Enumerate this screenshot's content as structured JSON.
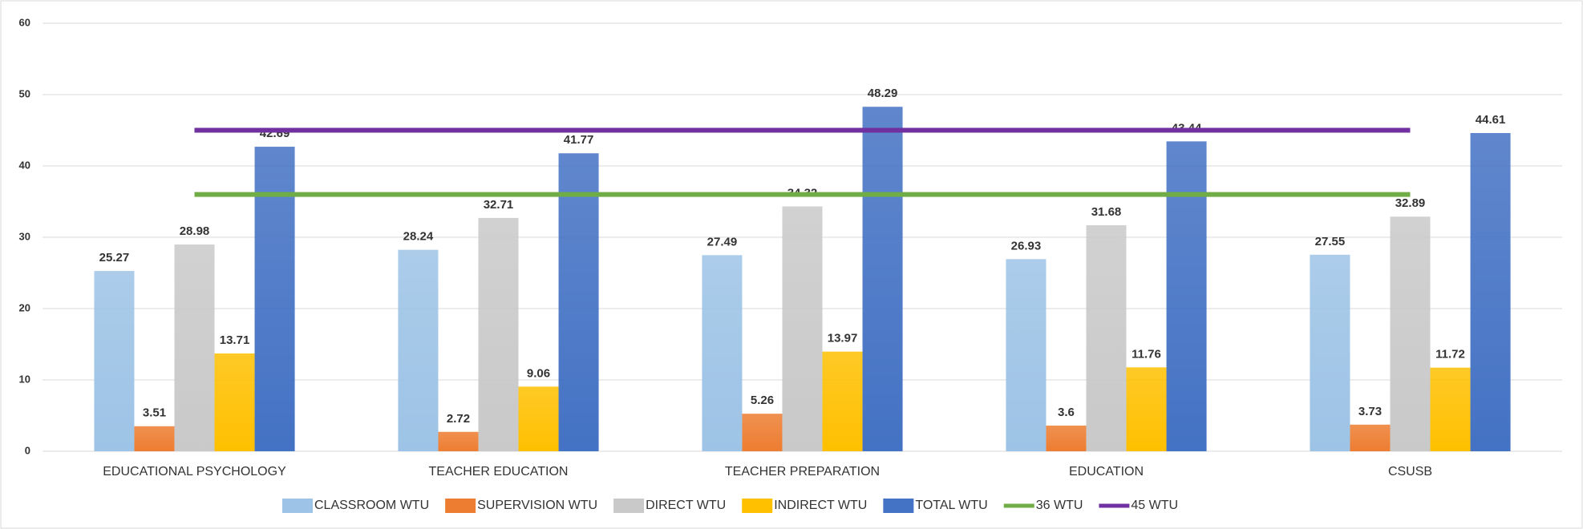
{
  "chart_data": {
    "type": "bar",
    "categories": [
      "EDUCATIONAL PSYCHOLOGY",
      "TEACHER EDUCATION",
      "TEACHER PREPARATION",
      "EDUCATION",
      "CSUSB"
    ],
    "ylim": [
      0,
      60
    ],
    "yticks": [
      0,
      10,
      20,
      30,
      40,
      50,
      60
    ],
    "grid": true,
    "legend": "bottom",
    "series": [
      {
        "name": "CLASSROOM WTU",
        "color": "#9dc3e6",
        "values": [
          25.27,
          28.24,
          27.49,
          26.93,
          27.55
        ]
      },
      {
        "name": "SUPERVISION WTU",
        "color": "#ed7d31",
        "values": [
          3.51,
          2.72,
          5.26,
          3.6,
          3.73
        ]
      },
      {
        "name": "DIRECT WTU",
        "color": "#c9c9c9",
        "values": [
          28.98,
          32.71,
          34.32,
          31.68,
          32.89
        ]
      },
      {
        "name": "INDIRECT WTU",
        "color": "#ffc000",
        "values": [
          13.71,
          9.06,
          13.97,
          11.76,
          11.72
        ]
      },
      {
        "name": "TOTAL WTU",
        "color": "#4472c4",
        "values": [
          42.69,
          41.77,
          48.29,
          43.44,
          44.61
        ]
      },
      {
        "name": "36 WTU",
        "color": "#70ad47",
        "type": "line",
        "values": [
          36,
          36,
          36,
          36,
          36
        ]
      },
      {
        "name": "45 WTU",
        "color": "#7030a0",
        "type": "line",
        "values": [
          45,
          45,
          45,
          45,
          45
        ]
      }
    ]
  }
}
